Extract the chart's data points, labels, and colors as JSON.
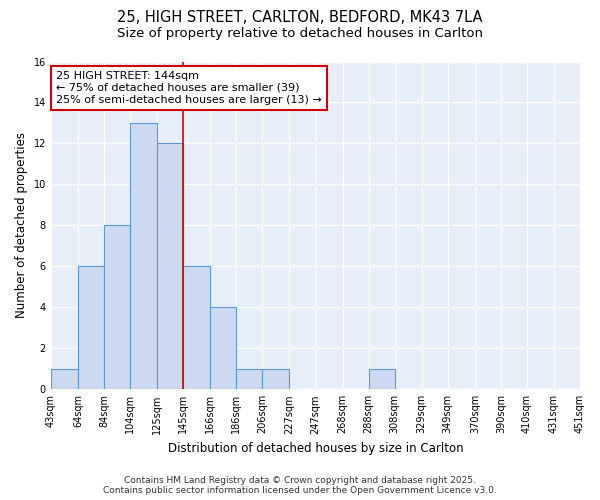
{
  "title1": "25, HIGH STREET, CARLTON, BEDFORD, MK43 7LA",
  "title2": "Size of property relative to detached houses in Carlton",
  "xlabel": "Distribution of detached houses by size in Carlton",
  "ylabel": "Number of detached properties",
  "bin_edges": [
    43,
    64,
    84,
    104,
    125,
    145,
    166,
    186,
    206,
    227,
    247,
    268,
    288,
    308,
    329,
    349,
    370,
    390,
    410,
    431,
    451
  ],
  "counts": [
    1,
    6,
    8,
    13,
    12,
    6,
    4,
    1,
    1,
    0,
    0,
    0,
    1,
    0,
    0,
    0,
    0,
    0,
    0,
    0
  ],
  "bar_facecolor": "#ccd9f0",
  "bar_edgecolor": "#5b9bd5",
  "vline_x": 145,
  "vline_color": "#cc0000",
  "annotation_text": "25 HIGH STREET: 144sqm\n← 75% of detached houses are smaller (39)\n25% of semi-detached houses are larger (13) →",
  "annotation_box_edgecolor": "#cc0000",
  "annotation_box_facecolor": "#ffffff",
  "ylim": [
    0,
    16
  ],
  "yticks": [
    0,
    2,
    4,
    6,
    8,
    10,
    12,
    14,
    16
  ],
  "bg_color": "#e8eef8",
  "grid_color": "#ffffff",
  "footer1": "Contains HM Land Registry data © Crown copyright and database right 2025.",
  "footer2": "Contains public sector information licensed under the Open Government Licence v3.0.",
  "title_fontsize": 10.5,
  "subtitle_fontsize": 9.5,
  "axis_label_fontsize": 8.5,
  "tick_fontsize": 7,
  "annotation_fontsize": 8,
  "footer_fontsize": 6.5
}
